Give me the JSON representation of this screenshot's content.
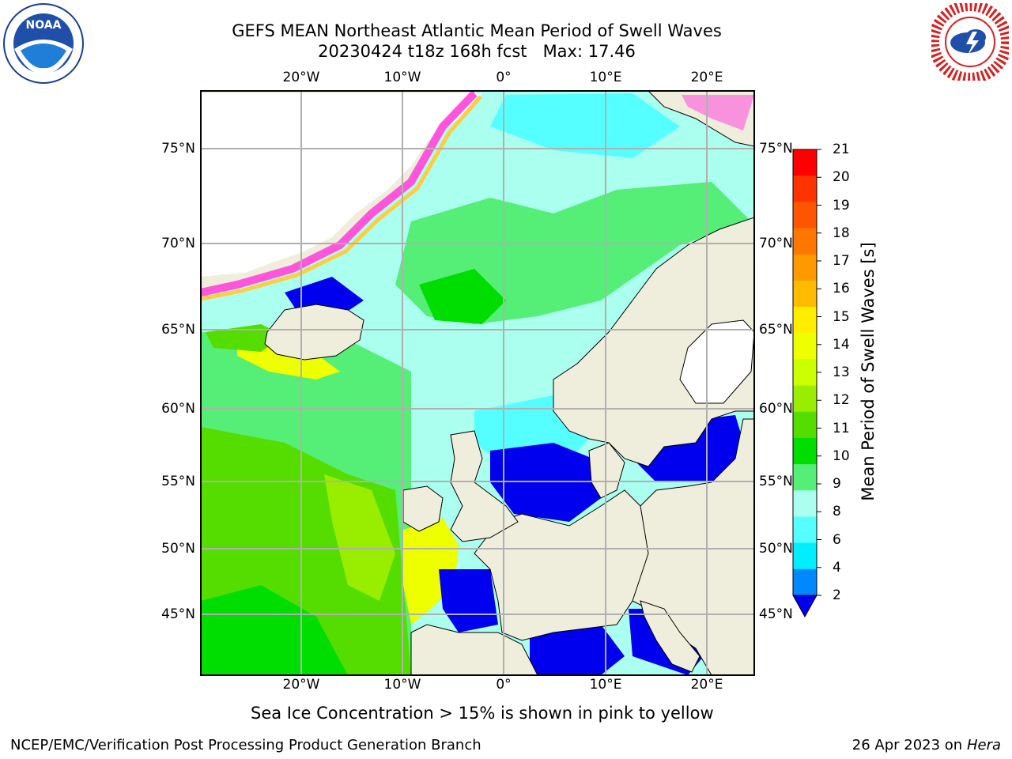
{
  "title": {
    "line1": "GEFS MEAN Northeast Atlantic Mean Period of Swell Waves",
    "line2": "20230424 t18z 168h fcst   Max: 17.46"
  },
  "map": {
    "projection_area": "Northeast Atlantic",
    "lon_labels": [
      "20°W",
      "10°W",
      "0°",
      "10°E",
      "20°E"
    ],
    "lon_values": [
      -20,
      -10,
      0,
      10,
      20
    ],
    "lat_labels": [
      "75°N",
      "70°N",
      "65°N",
      "60°N",
      "55°N",
      "50°N",
      "45°N"
    ],
    "lat_values": [
      75,
      70,
      65,
      60,
      55,
      50,
      45
    ],
    "land_color": "#efeddc",
    "ocean_fill_note": "swell period shaded field"
  },
  "colorbar": {
    "label": "Mean Period of Swell Waves [s]",
    "ticks": [
      "21",
      "20",
      "19",
      "18",
      "17",
      "16",
      "15",
      "14",
      "13",
      "12",
      "11",
      "10",
      "9",
      "8",
      "6",
      "4",
      "2"
    ],
    "colors": [
      "#ff0000",
      "#ff3300",
      "#ff5500",
      "#ff7700",
      "#ff9900",
      "#ffbb00",
      "#ffee00",
      "#eeff00",
      "#ccff00",
      "#99ee00",
      "#55dd00",
      "#00dd00",
      "#55ee77",
      "#aaffee",
      "#55ffff",
      "#00eeff",
      "#0088ff",
      "#0000ee"
    ]
  },
  "caption": "Sea Ice Concentration > 15% is shown in pink to yellow",
  "footer": {
    "left": "NCEP/EMC/Verification Post Processing Product Generation Branch",
    "right_date": "26 Apr 2023 on",
    "right_machine": "Hera"
  },
  "logos": {
    "left": "NOAA",
    "right": "NATIONAL WEATHER SERVICE"
  }
}
